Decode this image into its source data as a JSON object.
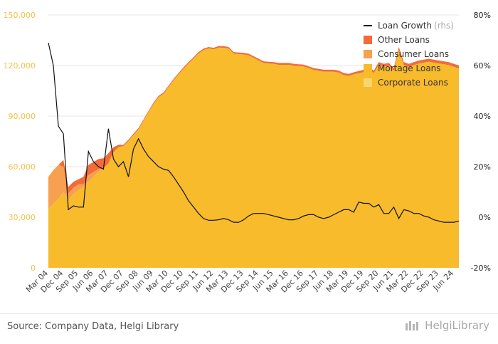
{
  "chart_data": {
    "type": "area",
    "title": "",
    "x_ticks": [
      "Mar 04",
      "Dec 04",
      "Sep 05",
      "Jun 06",
      "Mar 07",
      "Dec 07",
      "Sep 08",
      "Jun 09",
      "Mar 10",
      "Dec 10",
      "Sep 11",
      "Jun 12",
      "Mar 13",
      "Dec 13",
      "Sep 14",
      "Jun 15",
      "Mar 16",
      "Dec 16",
      "Sep 17",
      "Jun 18",
      "Mar 19",
      "Dec 19",
      "Sep 20",
      "Jun 21",
      "Mar 22",
      "Dec 22",
      "Sep 23",
      "Jun 24"
    ],
    "y_left": {
      "min": 0,
      "max": 150000,
      "ticks": [
        0,
        30000,
        60000,
        90000,
        120000,
        150000
      ],
      "tick_labels": [
        "0",
        "30,000",
        "60,000",
        "90,000",
        "120,000",
        "150,000"
      ]
    },
    "y_right": {
      "min": -20,
      "max": 80,
      "ticks": [
        -20,
        0,
        20,
        40,
        60,
        80
      ],
      "tick_labels": [
        "-20%",
        "0%",
        "20%",
        "40%",
        "60%",
        "80%"
      ]
    },
    "legend": {
      "position": "top-right",
      "items": [
        {
          "label": "Loan Growth",
          "suffix": "(rhs)",
          "kind": "line",
          "color": "#000000"
        },
        {
          "label": "Other Loans",
          "kind": "area",
          "color": "#f26b38"
        },
        {
          "label": "Consumer Loans",
          "kind": "area",
          "color": "#f7a04f"
        },
        {
          "label": "Mortage Loans",
          "kind": "area",
          "color": "#f7bb2b"
        },
        {
          "label": "Corporate Loans",
          "kind": "area",
          "color": "#fbd572"
        }
      ]
    },
    "series_quarters": 83,
    "stack_total_knots": [
      [
        0,
        54000
      ],
      [
        1,
        58000
      ],
      [
        3,
        64000
      ],
      [
        4,
        48000
      ],
      [
        5,
        51000
      ],
      [
        7,
        54000
      ],
      [
        8,
        61000
      ],
      [
        10,
        64500
      ],
      [
        11,
        65000
      ],
      [
        12,
        68000
      ],
      [
        13,
        71500
      ],
      [
        14,
        73000
      ],
      [
        15,
        73000
      ],
      [
        16,
        76000
      ],
      [
        18,
        83000
      ],
      [
        20,
        93000
      ],
      [
        21,
        98000
      ],
      [
        22,
        102000
      ],
      [
        23,
        104000
      ],
      [
        25,
        112000
      ],
      [
        27,
        119000
      ],
      [
        28,
        122000
      ],
      [
        30,
        128000
      ],
      [
        31,
        130000
      ],
      [
        32,
        131000
      ],
      [
        33,
        130500
      ],
      [
        34,
        131500
      ],
      [
        35,
        131500
      ],
      [
        36,
        131000
      ],
      [
        37,
        128000
      ],
      [
        39,
        127500
      ],
      [
        40,
        127000
      ],
      [
        42,
        124000
      ],
      [
        43,
        122500
      ],
      [
        45,
        122000
      ],
      [
        46,
        121500
      ],
      [
        48,
        121500
      ],
      [
        49,
        121000
      ],
      [
        51,
        120500
      ],
      [
        52,
        119500
      ],
      [
        53,
        118500
      ],
      [
        55,
        117500
      ],
      [
        57,
        117500
      ],
      [
        58,
        117000
      ],
      [
        59,
        115500
      ],
      [
        60,
        115000
      ],
      [
        61,
        116000
      ],
      [
        63,
        117500
      ],
      [
        64,
        119000
      ],
      [
        65,
        117000
      ],
      [
        66,
        122000
      ],
      [
        67,
        121000
      ],
      [
        68,
        121500
      ],
      [
        69,
        118500
      ],
      [
        70,
        131000
      ],
      [
        71,
        122000
      ],
      [
        72,
        121000
      ],
      [
        74,
        123000
      ],
      [
        76,
        124000
      ],
      [
        77,
        123500
      ],
      [
        78,
        123000
      ],
      [
        80,
        122000
      ],
      [
        82,
        120000
      ]
    ],
    "other_loans_band_knots": [
      [
        0,
        0
      ],
      [
        2,
        0
      ],
      [
        3,
        4000
      ],
      [
        4,
        4000
      ],
      [
        5,
        3500
      ],
      [
        6,
        3000
      ],
      [
        8,
        6000
      ],
      [
        12,
        6000
      ],
      [
        13,
        3000
      ],
      [
        14,
        1500
      ],
      [
        15,
        800
      ],
      [
        27,
        800
      ],
      [
        40,
        1000
      ],
      [
        60,
        1200
      ],
      [
        70,
        1800
      ],
      [
        82,
        1800
      ]
    ],
    "mortgage_top_knots": [
      [
        0,
        35000
      ],
      [
        1,
        38000
      ],
      [
        2,
        41000
      ],
      [
        3,
        45000
      ],
      [
        4,
        40000
      ],
      [
        5,
        44000
      ],
      [
        7,
        48000
      ],
      [
        8,
        51000
      ],
      [
        10,
        57000
      ],
      [
        11,
        60000
      ],
      [
        12,
        65000
      ],
      [
        13,
        70000
      ],
      [
        14,
        72000
      ],
      [
        15,
        72000
      ]
    ],
    "loan_growth_knots": [
      [
        0,
        69
      ],
      [
        1,
        60
      ],
      [
        2,
        36
      ],
      [
        3,
        33
      ],
      [
        4,
        3
      ],
      [
        5,
        4.5
      ],
      [
        6,
        4
      ],
      [
        7,
        4
      ],
      [
        8,
        26
      ],
      [
        9,
        22
      ],
      [
        10,
        20
      ],
      [
        11,
        19
      ],
      [
        12,
        35
      ],
      [
        13,
        23
      ],
      [
        14,
        20
      ],
      [
        15,
        22
      ],
      [
        16,
        16
      ],
      [
        17,
        27
      ],
      [
        18,
        31
      ],
      [
        19,
        27
      ],
      [
        20,
        24
      ],
      [
        21,
        22
      ],
      [
        22,
        20
      ],
      [
        23,
        19
      ],
      [
        24,
        18.5
      ],
      [
        25,
        16
      ],
      [
        26,
        13
      ],
      [
        27,
        10
      ],
      [
        28,
        6.5
      ],
      [
        29,
        4
      ],
      [
        30,
        1.5
      ],
      [
        31,
        -0.5
      ],
      [
        32,
        -1.2
      ],
      [
        33,
        -1.2
      ],
      [
        34,
        -1
      ],
      [
        35,
        -0.5
      ],
      [
        36,
        -1
      ],
      [
        37,
        -2
      ],
      [
        38,
        -2
      ],
      [
        39,
        -1
      ],
      [
        40,
        0.5
      ],
      [
        41,
        1.5
      ],
      [
        42,
        1.5
      ],
      [
        43,
        1.5
      ],
      [
        44,
        1
      ],
      [
        45,
        0.5
      ],
      [
        46,
        0
      ],
      [
        47,
        -0.5
      ],
      [
        48,
        -1
      ],
      [
        49,
        -1
      ],
      [
        50,
        -0.5
      ],
      [
        51,
        0.5
      ],
      [
        52,
        1
      ],
      [
        53,
        1
      ],
      [
        54,
        0
      ],
      [
        55,
        -0.5
      ],
      [
        56,
        0
      ],
      [
        57,
        1
      ],
      [
        58,
        2
      ],
      [
        59,
        3
      ],
      [
        60,
        3
      ],
      [
        61,
        2
      ],
      [
        62,
        6
      ],
      [
        63,
        5.5
      ],
      [
        64,
        5.5
      ],
      [
        65,
        4
      ],
      [
        66,
        5
      ],
      [
        67,
        1.5
      ],
      [
        68,
        1.5
      ],
      [
        69,
        4
      ],
      [
        70,
        -0.5
      ],
      [
        71,
        3
      ],
      [
        72,
        2.5
      ],
      [
        73,
        1.5
      ],
      [
        74,
        1.5
      ],
      [
        75,
        0.5
      ],
      [
        76,
        0
      ],
      [
        77,
        -1
      ],
      [
        78,
        -1.5
      ],
      [
        79,
        -2
      ],
      [
        80,
        -2
      ],
      [
        81,
        -2
      ],
      [
        82,
        -1.5
      ]
    ]
  },
  "footer": {
    "source": "Source: Company Data, Helgi Library",
    "brand": "HelgiLibrary"
  }
}
